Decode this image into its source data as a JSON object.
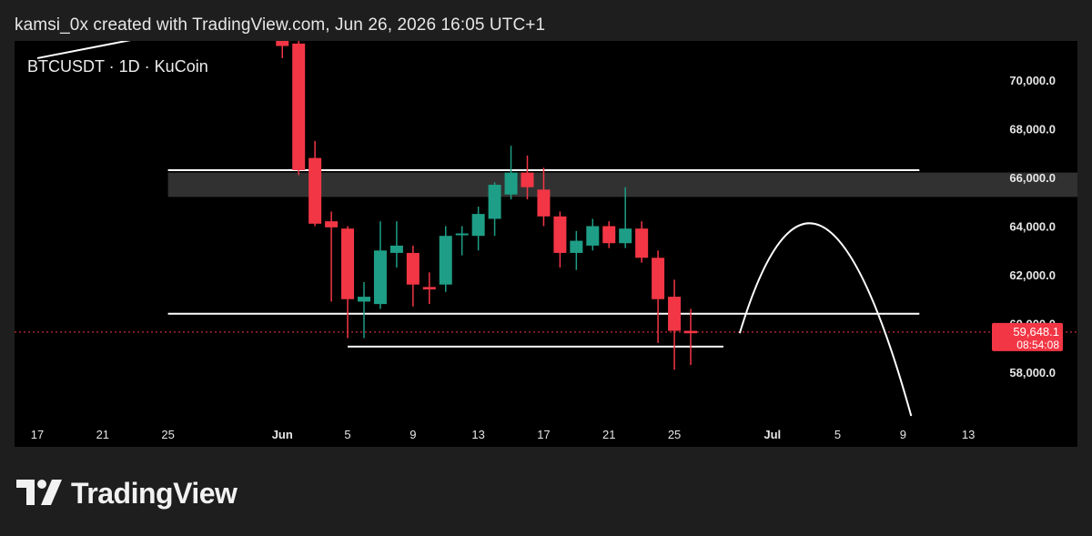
{
  "header": {
    "caption": "kamsi_0x created with TradingView.com, Jun 26, 2026 16:05 UTC+1"
  },
  "symbol": "BTCUSDT · 1D · KuCoin",
  "brand": {
    "name": "TradingView",
    "logo_icon": "tradingview-logo-icon"
  },
  "colors": {
    "up": "#1e9e86",
    "down": "#f23645",
    "background": "#000000",
    "frame": "#1e1e1e",
    "text": "#e6e6e6",
    "price_badge": "#f23645",
    "zone": "#3a3a3a"
  },
  "chart_data": {
    "type": "candlestick",
    "symbol": "BTCUSDT",
    "interval": "1D",
    "exchange": "KuCoin",
    "y_ticks": [
      58000,
      60000,
      62000,
      64000,
      66000,
      68000,
      70000
    ],
    "y_tick_labels": [
      "58,000.0",
      "60,000.0",
      "62,000.0",
      "64,000.0",
      "66,000.0",
      "68,000.0",
      "70,000.0"
    ],
    "ylim": [
      56000,
      71800
    ],
    "x_axis": {
      "start_day": "May 17",
      "ticks": [
        {
          "label": "17",
          "day": 0
        },
        {
          "label": "21",
          "day": 4
        },
        {
          "label": "25",
          "day": 8
        },
        {
          "label": "Jun",
          "day": 15
        },
        {
          "label": "5",
          "day": 19
        },
        {
          "label": "9",
          "day": 23
        },
        {
          "label": "13",
          "day": 27
        },
        {
          "label": "17",
          "day": 31
        },
        {
          "label": "21",
          "day": 35
        },
        {
          "label": "25",
          "day": 39
        },
        {
          "label": "Jul",
          "day": 45
        },
        {
          "label": "5",
          "day": 49
        },
        {
          "label": "9",
          "day": 53
        },
        {
          "label": "13",
          "day": 57
        }
      ]
    },
    "candles": [
      {
        "day": 15,
        "o": 71800,
        "h": 71800,
        "l": 70900,
        "c": 71400
      },
      {
        "day": 16,
        "o": 71500,
        "h": 72000,
        "l": 66100,
        "c": 66300
      },
      {
        "day": 17,
        "o": 66800,
        "h": 67500,
        "l": 64000,
        "c": 64100
      },
      {
        "day": 18,
        "o": 64200,
        "h": 64600,
        "l": 60900,
        "c": 63950
      },
      {
        "day": 19,
        "o": 63900,
        "h": 64000,
        "l": 59400,
        "c": 61000
      },
      {
        "day": 20,
        "o": 60900,
        "h": 61700,
        "l": 59400,
        "c": 61100
      },
      {
        "day": 21,
        "o": 60800,
        "h": 64200,
        "l": 60600,
        "c": 63000
      },
      {
        "day": 22,
        "o": 62900,
        "h": 64200,
        "l": 62300,
        "c": 63200
      },
      {
        "day": 23,
        "o": 62900,
        "h": 63200,
        "l": 60700,
        "c": 61600
      },
      {
        "day": 24,
        "o": 61500,
        "h": 62100,
        "l": 60800,
        "c": 61400
      },
      {
        "day": 25,
        "o": 61600,
        "h": 64000,
        "l": 61300,
        "c": 63600
      },
      {
        "day": 26,
        "o": 63700,
        "h": 64000,
        "l": 62800,
        "c": 63700
      },
      {
        "day": 27,
        "o": 63600,
        "h": 64800,
        "l": 63000,
        "c": 64500
      },
      {
        "day": 28,
        "o": 64300,
        "h": 65800,
        "l": 63600,
        "c": 65700
      },
      {
        "day": 29,
        "o": 65300,
        "h": 67300,
        "l": 65100,
        "c": 66200
      },
      {
        "day": 30,
        "o": 66200,
        "h": 66900,
        "l": 65100,
        "c": 65600
      },
      {
        "day": 31,
        "o": 65500,
        "h": 66400,
        "l": 64000,
        "c": 64400
      },
      {
        "day": 32,
        "o": 64400,
        "h": 64600,
        "l": 62300,
        "c": 62900
      },
      {
        "day": 33,
        "o": 62900,
        "h": 63800,
        "l": 62200,
        "c": 63400
      },
      {
        "day": 34,
        "o": 63200,
        "h": 64300,
        "l": 63000,
        "c": 64000
      },
      {
        "day": 35,
        "o": 64000,
        "h": 64200,
        "l": 63100,
        "c": 63300
      },
      {
        "day": 36,
        "o": 63300,
        "h": 65600,
        "l": 63100,
        "c": 63900
      },
      {
        "day": 37,
        "o": 63900,
        "h": 64200,
        "l": 62500,
        "c": 62700
      },
      {
        "day": 38,
        "o": 62700,
        "h": 63000,
        "l": 59200,
        "c": 61000
      },
      {
        "day": 39,
        "o": 61100,
        "h": 61800,
        "l": 58100,
        "c": 59700
      },
      {
        "day": 40,
        "o": 59700,
        "h": 60600,
        "l": 58300,
        "c": 59600
      }
    ],
    "resistance_zone": {
      "low": 65200,
      "high": 66200,
      "from_day": 8,
      "to_day": 70
    },
    "lines": [
      {
        "name": "resistance-line",
        "y": 66300,
        "from_day": 8,
        "to_day": 54
      },
      {
        "name": "support-line",
        "y": 60400,
        "from_day": 8,
        "to_day": 54
      },
      {
        "name": "range-low-line",
        "y": 59050,
        "from_day": 19,
        "to_day": 42
      },
      {
        "name": "prior-trend-line",
        "from": {
          "day": 0,
          "y": 70900
        },
        "to": {
          "day": 10,
          "y": 72200
        }
      }
    ],
    "projection": {
      "from": {
        "day": 43,
        "y": 59600
      },
      "peak": {
        "day": 48,
        "y": 64000
      },
      "to": {
        "day": 53.5,
        "y": 56200
      }
    },
    "last_price": {
      "value": 59648.1,
      "label": "59,648.1",
      "countdown": "08:54:08"
    }
  }
}
